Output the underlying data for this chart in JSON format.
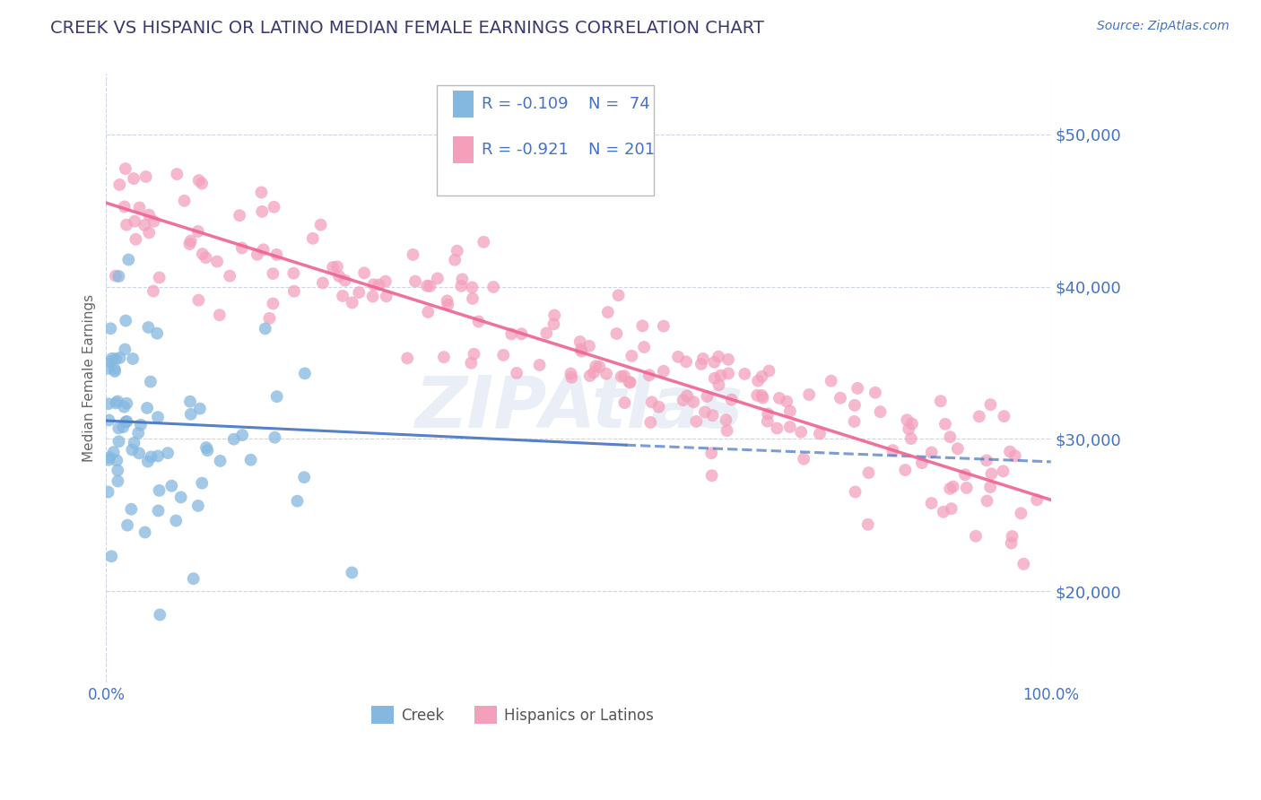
{
  "title": "CREEK VS HISPANIC OR LATINO MEDIAN FEMALE EARNINGS CORRELATION CHART",
  "source_text": "Source: ZipAtlas.com",
  "ylabel": "Median Female Earnings",
  "xlim": [
    0,
    1.0
  ],
  "ylim": [
    14000,
    54000
  ],
  "yticks": [
    20000,
    30000,
    40000,
    50000
  ],
  "xtick_labels": [
    "0.0%",
    "100.0%"
  ],
  "ytick_labels": [
    "$20,000",
    "$30,000",
    "$40,000",
    "$50,000"
  ],
  "title_color": "#3a3a6e",
  "title_fontsize": 14,
  "axis_color": "#4472c4",
  "background_color": "#ffffff",
  "grid_color": "#c8d0e0",
  "creek_color": "#85b8e0",
  "hispanic_color": "#f4a0bb",
  "creek_line_color": "#4472c4",
  "hispanic_line_color": "#f06292",
  "creek_R": -0.109,
  "creek_N": 74,
  "hispanic_R": -0.921,
  "hispanic_N": 201,
  "legend_label_creek": "Creek",
  "legend_label_hispanic": "Hispanics or Latinos",
  "watermark": "ZIPAtlas",
  "creek_trend_x0": 0.0,
  "creek_trend_y0": 31200,
  "creek_trend_x1": 0.55,
  "creek_trend_y1": 29600,
  "creek_trend_dash_x0": 0.55,
  "creek_trend_dash_y0": 29600,
  "creek_trend_dash_x1": 1.0,
  "creek_trend_dash_y1": 28500,
  "hisp_trend_x0": 0.0,
  "hisp_trend_y0": 45500,
  "hisp_trend_x1": 1.0,
  "hisp_trend_y1": 26000,
  "seed": 42
}
